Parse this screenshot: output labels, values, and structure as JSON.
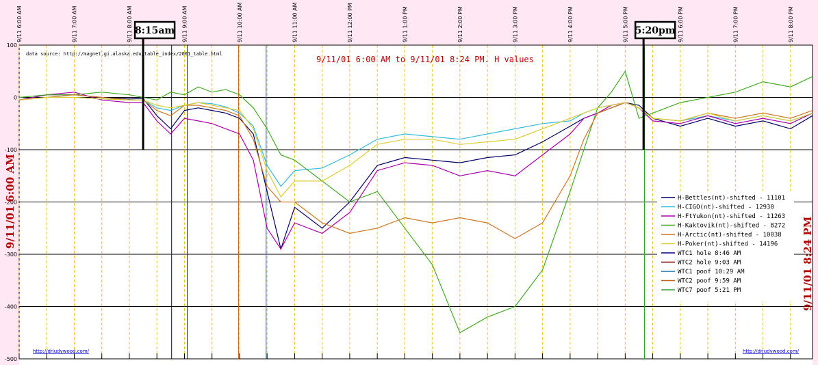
{
  "chart_data": {
    "type": "line",
    "title": "9/11/01 6:00 AM  to  9/11/01 8:24 PM. H values",
    "source_note": "data source:  http://magnet.gi.alaska.edu/table_index/2001_table.html",
    "left_label": "9/11/01 6:00 AM",
    "right_label": "9/11/01 8:24 PM",
    "footer_left": "http://drjudywood.com/",
    "footer_right": "http://drjudywood.com/",
    "x_tick_labels": [
      "9/11 6:00 AM",
      "9/11 7:00 AM",
      "9/11 8:00 AM",
      "9/11 9:00 AM",
      "9/11 10:00 AM",
      "9/11 11:00 AM",
      "9/11 12:00 PM",
      "9/11 1:00 PM",
      "9/11 2:00 PM",
      "9/11 3:00 PM",
      "9/11 4:00 PM",
      "9/11 5:00 PM",
      "9/11 6:00 PM",
      "9/11 7:00 PM",
      "9/11 8:00 PM"
    ],
    "x_range_hours": [
      6.0,
      20.4
    ],
    "ylim": [
      -500,
      100
    ],
    "y_ticks": [
      100,
      0,
      -100,
      -200,
      -300,
      -400,
      -500
    ],
    "grid": "horizontal solid at each 100; vertical dashed at each 30 min",
    "legend_placement": "right-middle",
    "callouts": [
      {
        "label": "8:15am",
        "hour": 8.25,
        "color": "#000000"
      },
      {
        "label": "5:20pm",
        "hour": 17.333,
        "color": "#000000"
      }
    ],
    "event_lines": [
      {
        "name": "WTC1 hole 8:46 AM",
        "hour": 8.767,
        "color": "#000080"
      },
      {
        "name": "WTC2 hole 9:03 AM",
        "hour": 9.05,
        "color": "#800000"
      },
      {
        "name": "WTC1 poof 10:29 AM",
        "hour": 10.483,
        "color": "#1e6ea8"
      },
      {
        "name": "WTC2 poof 9:59 AM",
        "hour": 9.983,
        "color": "#c06010"
      },
      {
        "name": "WTC7 poof 5:21 PM",
        "hour": 17.35,
        "color": "#2e9e2e"
      }
    ],
    "series": [
      {
        "name": "H-Bettles(nt)-shifted - 11101",
        "color": "#000066",
        "x": [
          6.0,
          6.5,
          7.0,
          7.5,
          8.0,
          8.25,
          8.5,
          8.75,
          9.0,
          9.25,
          9.5,
          9.75,
          10.0,
          10.25,
          10.5,
          10.75,
          11.0,
          11.5,
          12.0,
          12.5,
          13.0,
          13.5,
          14.0,
          14.5,
          15.0,
          15.5,
          16.0,
          16.25,
          16.5,
          16.75,
          17.0,
          17.25,
          17.5,
          18.0,
          18.5,
          19.0,
          19.5,
          20.0,
          20.4
        ],
        "y": [
          -5,
          5,
          5,
          0,
          -3,
          -2,
          -35,
          -60,
          -25,
          -20,
          -25,
          -30,
          -40,
          -70,
          -180,
          -290,
          -210,
          -250,
          -200,
          -130,
          -115,
          -120,
          -125,
          -115,
          -110,
          -85,
          -55,
          -40,
          -30,
          -20,
          -10,
          -15,
          -40,
          -55,
          -40,
          -55,
          -45,
          -60,
          -35
        ]
      },
      {
        "name": "H-CIGO(nt)-shifted - 12930",
        "color": "#33bbdd",
        "x": [
          6.0,
          6.5,
          7.0,
          7.5,
          8.0,
          8.25,
          8.5,
          8.75,
          9.0,
          9.25,
          9.5,
          9.75,
          10.0,
          10.25,
          10.5,
          10.75,
          11.0,
          11.5,
          12.0,
          12.5,
          13.0,
          13.5,
          14.0,
          14.5,
          15.0,
          15.5,
          16.0,
          16.25,
          16.5,
          16.75,
          17.0,
          17.25,
          17.5,
          18.0,
          18.5,
          19.0,
          19.5,
          20.0,
          20.4
        ],
        "y": [
          -5,
          0,
          0,
          -3,
          -5,
          -5,
          -20,
          -25,
          -15,
          -10,
          -12,
          -18,
          -30,
          -55,
          -130,
          -170,
          -140,
          -135,
          -110,
          -80,
          -70,
          -75,
          -80,
          -70,
          -60,
          -50,
          -45,
          -30,
          -20,
          -15,
          -10,
          -20,
          -40,
          -45,
          -35,
          -45,
          -35,
          -45,
          -30
        ]
      },
      {
        "name": "H-FtYukon(nt)-shifted - 11263",
        "color": "#aa00aa",
        "x": [
          6.0,
          6.5,
          7.0,
          7.5,
          8.0,
          8.25,
          8.5,
          8.75,
          9.0,
          9.25,
          9.5,
          9.75,
          10.0,
          10.25,
          10.5,
          10.75,
          11.0,
          11.5,
          12.0,
          12.5,
          13.0,
          13.5,
          14.0,
          14.5,
          15.0,
          15.5,
          16.0,
          16.25,
          16.5,
          16.75,
          17.0,
          17.25,
          17.5,
          18.0,
          18.5,
          19.0,
          19.5,
          20.0,
          20.4
        ],
        "y": [
          -5,
          5,
          10,
          -5,
          -10,
          -10,
          -45,
          -70,
          -40,
          -45,
          -50,
          -60,
          -70,
          -120,
          -250,
          -290,
          -240,
          -260,
          -220,
          -140,
          -125,
          -130,
          -150,
          -140,
          -150,
          -110,
          -70,
          -40,
          -30,
          -15,
          -10,
          -20,
          -45,
          -50,
          -35,
          -50,
          -40,
          -50,
          -30
        ]
      },
      {
        "name": "H-Kaktovik(nt)-shifted - 8272",
        "color": "#44aa22",
        "x": [
          6.0,
          6.5,
          7.0,
          7.5,
          8.0,
          8.25,
          8.5,
          8.75,
          9.0,
          9.25,
          9.5,
          9.75,
          10.0,
          10.25,
          10.5,
          10.75,
          11.0,
          11.5,
          12.0,
          12.5,
          13.0,
          13.5,
          14.0,
          14.5,
          15.0,
          15.5,
          16.0,
          16.25,
          16.5,
          16.75,
          17.0,
          17.25,
          17.5,
          18.0,
          18.5,
          19.0,
          19.5,
          20.0,
          20.4
        ],
        "y": [
          0,
          5,
          5,
          10,
          5,
          0,
          -5,
          10,
          5,
          20,
          10,
          15,
          5,
          -20,
          -60,
          -110,
          -120,
          -160,
          -200,
          -180,
          -250,
          -320,
          -450,
          -420,
          -400,
          -330,
          -180,
          -100,
          -20,
          10,
          50,
          -40,
          -30,
          -10,
          0,
          10,
          30,
          20,
          40
        ]
      },
      {
        "name": "H-Arctic(nt)-shifted - 10038",
        "color": "#cc7722",
        "x": [
          6.0,
          6.5,
          7.0,
          7.5,
          8.0,
          8.25,
          8.5,
          8.75,
          9.0,
          9.25,
          9.5,
          9.75,
          10.0,
          10.25,
          10.5,
          10.75,
          11.0,
          11.5,
          12.0,
          12.5,
          13.0,
          13.5,
          14.0,
          14.5,
          15.0,
          15.5,
          16.0,
          16.25,
          16.5,
          16.75,
          17.0,
          17.25,
          17.5,
          18.0,
          18.5,
          19.0,
          19.5,
          20.0,
          20.4
        ],
        "y": [
          -5,
          0,
          5,
          0,
          -5,
          -5,
          -25,
          -35,
          -15,
          -15,
          -20,
          -25,
          -35,
          -80,
          -170,
          -200,
          -200,
          -240,
          -260,
          -250,
          -230,
          -240,
          -230,
          -240,
          -270,
          -240,
          -150,
          -80,
          -30,
          -20,
          -10,
          -20,
          -40,
          -45,
          -30,
          -40,
          -30,
          -40,
          -25
        ]
      },
      {
        "name": "H-Poker(nt)-shifted - 14196",
        "color": "#ddcc33",
        "x": [
          6.0,
          6.5,
          7.0,
          7.5,
          8.0,
          8.25,
          8.5,
          8.75,
          9.0,
          9.25,
          9.5,
          9.75,
          10.0,
          10.25,
          10.5,
          10.75,
          11.0,
          11.5,
          12.0,
          12.5,
          13.0,
          13.5,
          14.0,
          14.5,
          15.0,
          15.5,
          16.0,
          16.25,
          16.5,
          16.75,
          17.0,
          17.25,
          17.5,
          18.0,
          18.5,
          19.0,
          19.5,
          20.0,
          20.4
        ],
        "y": [
          -5,
          0,
          0,
          -3,
          -5,
          -5,
          -15,
          -20,
          -15,
          -10,
          -15,
          -20,
          -25,
          -60,
          -140,
          -190,
          -160,
          -160,
          -130,
          -90,
          -80,
          -80,
          -90,
          -85,
          -80,
          -60,
          -40,
          -30,
          -20,
          -15,
          -10,
          -20,
          -40,
          -45,
          -30,
          -45,
          -35,
          -45,
          -30
        ]
      }
    ]
  }
}
